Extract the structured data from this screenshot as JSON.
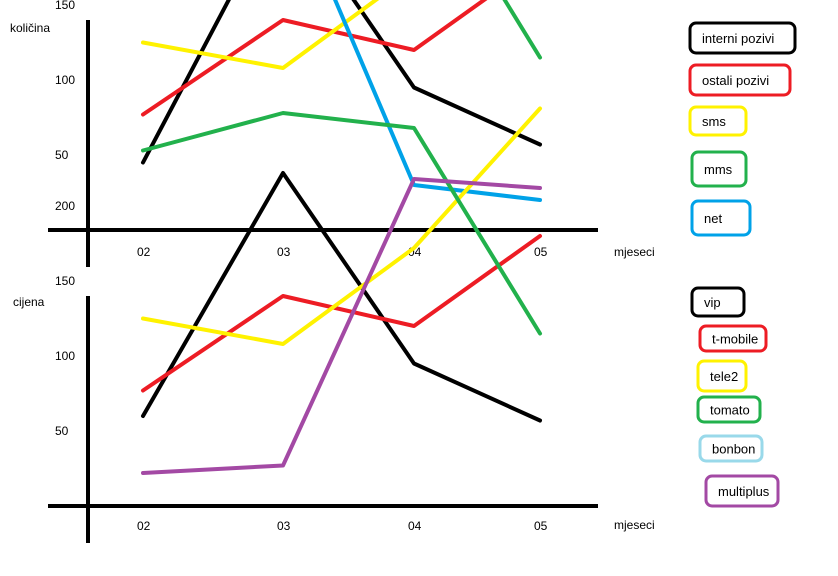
{
  "chart_data": [
    {
      "type": "line",
      "ylabel": "količina",
      "xlabel": "mjeseci",
      "categories": [
        "02",
        "03",
        "04",
        "05"
      ],
      "yticks": [
        50,
        100,
        150,
        200
      ],
      "ylim": [
        0,
        240
      ],
      "grid": false,
      "legend_position": "right",
      "series": [
        {
          "name": "interni pozivi",
          "color": "#000000",
          "values": [
            45,
            222,
            95,
            57
          ]
        },
        {
          "name": "ostali pozivi",
          "color": "#ed1c24",
          "values": [
            77,
            140,
            120,
            180
          ]
        },
        {
          "name": "sms",
          "color": "#fff200",
          "values": [
            125,
            108,
            172,
            265
          ]
        },
        {
          "name": "mms",
          "color": "#22b14c",
          "values": [
            237,
            262,
            252,
            115
          ]
        },
        {
          "name": "net",
          "color": "#00a2e8",
          "values": [
            177,
            235,
            30,
            20
          ]
        }
      ]
    },
    {
      "type": "line",
      "ylabel": "cijena",
      "xlabel": "mjeseci",
      "categories": [
        "02",
        "03",
        "04",
        "05"
      ],
      "yticks": [
        50,
        100,
        150,
        200
      ],
      "ylim": [
        0,
        240
      ],
      "grid": false,
      "legend_position": "right",
      "series": [
        {
          "name": "vip",
          "color": "#000000",
          "values": [
            60,
            222,
            95,
            57
          ]
        },
        {
          "name": "t-mobile",
          "color": "#ed1c24",
          "values": [
            77,
            140,
            120,
            180
          ]
        },
        {
          "name": "tele2",
          "color": "#fff200",
          "values": [
            125,
            108,
            172,
            265
          ]
        },
        {
          "name": "tomato",
          "color": "#22b14c",
          "values": [
            237,
            262,
            252,
            115
          ]
        },
        {
          "name": "bonbon",
          "color": "#99d9ea",
          "values": [
            null,
            null,
            null,
            null
          ]
        },
        {
          "name": "multiplus",
          "color": "#a349a4",
          "values": [
            22,
            27,
            218,
            212
          ]
        }
      ]
    }
  ]
}
